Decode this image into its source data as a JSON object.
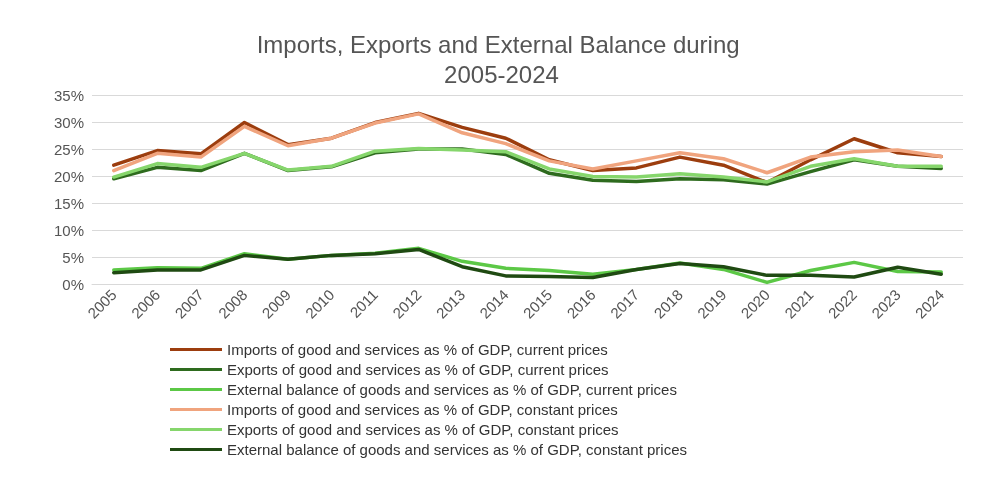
{
  "chart_data": {
    "type": "line",
    "title": "Imports, Exports and External Balance during 2005-2024",
    "categories": [
      "2005",
      "2006",
      "2007",
      "2008",
      "2009",
      "2010",
      "2011",
      "2012",
      "2013",
      "2014",
      "2015",
      "2016",
      "2017",
      "2018",
      "2019",
      "2020",
      "2021",
      "2022",
      "2023",
      "2024"
    ],
    "series": [
      {
        "name": "Imports of good and services as % of GDP, current prices",
        "color": "#9c3d0e",
        "values": [
          22,
          24.7,
          24.1,
          29.9,
          25.8,
          27,
          29.9,
          31.6,
          29,
          27,
          23,
          21,
          21.5,
          23.5,
          22,
          18.8,
          23,
          26.9,
          24.3,
          23.6
        ]
      },
      {
        "name": "Exports of good and services as % of GDP, current prices",
        "color": "#2e6b1e",
        "values": [
          19.5,
          21.6,
          21,
          24.2,
          21,
          21.7,
          24.3,
          25,
          25,
          24,
          20.5,
          19.2,
          19,
          19.5,
          19.3,
          18.5,
          20.8,
          23,
          21.8,
          21.4
        ]
      },
      {
        "name": "External balance of goods and services as % of GDP, current prices",
        "color": "#5cc846",
        "values": [
          2.6,
          3,
          2.9,
          5.6,
          4.6,
          5.3,
          5.7,
          6.6,
          4.2,
          2.9,
          2.5,
          1.8,
          2.7,
          3.9,
          2.7,
          0.3,
          2.5,
          4,
          2.3,
          2.2
        ]
      },
      {
        "name": "Imports of good and services as % of GDP, constant prices",
        "color": "#f0a47e",
        "values": [
          21,
          24.2,
          23.5,
          29.2,
          25.6,
          27,
          29.8,
          31.5,
          28,
          26,
          22.8,
          21.3,
          22.8,
          24.3,
          23.2,
          20.6,
          23.5,
          24.5,
          24.8,
          23.6
        ]
      },
      {
        "name": "Exports of good and services as % of GDP, constant prices",
        "color": "#86d66c",
        "values": [
          19.8,
          22.3,
          21.6,
          24.2,
          21.1,
          21.8,
          24.6,
          25.1,
          24.8,
          24.5,
          21.3,
          19.9,
          19.8,
          20.4,
          19.8,
          18.9,
          21.8,
          23.2,
          21.8,
          21.8
        ]
      },
      {
        "name": "External balance of goods and services as % of GDP, constant prices",
        "color": "#1f4a12",
        "values": [
          2.1,
          2.6,
          2.6,
          5.3,
          4.6,
          5.3,
          5.6,
          6.4,
          3.2,
          1.5,
          1.4,
          1.2,
          2.7,
          3.8,
          3.2,
          1.6,
          1.6,
          1.3,
          3.1,
          1.8
        ]
      }
    ],
    "ylim": [
      0,
      35
    ],
    "yticks": [
      {
        "value": 0,
        "label": "0%"
      },
      {
        "value": 5,
        "label": "5%"
      },
      {
        "value": 10,
        "label": "10%"
      },
      {
        "value": 15,
        "label": "15%"
      },
      {
        "value": 20,
        "label": "20%"
      },
      {
        "value": 25,
        "label": "25%"
      },
      {
        "value": 30,
        "label": "30%"
      },
      {
        "value": 35,
        "label": "35%"
      }
    ],
    "grid": "y",
    "legend": "bottom",
    "marker": "none",
    "line_style": "solid"
  }
}
